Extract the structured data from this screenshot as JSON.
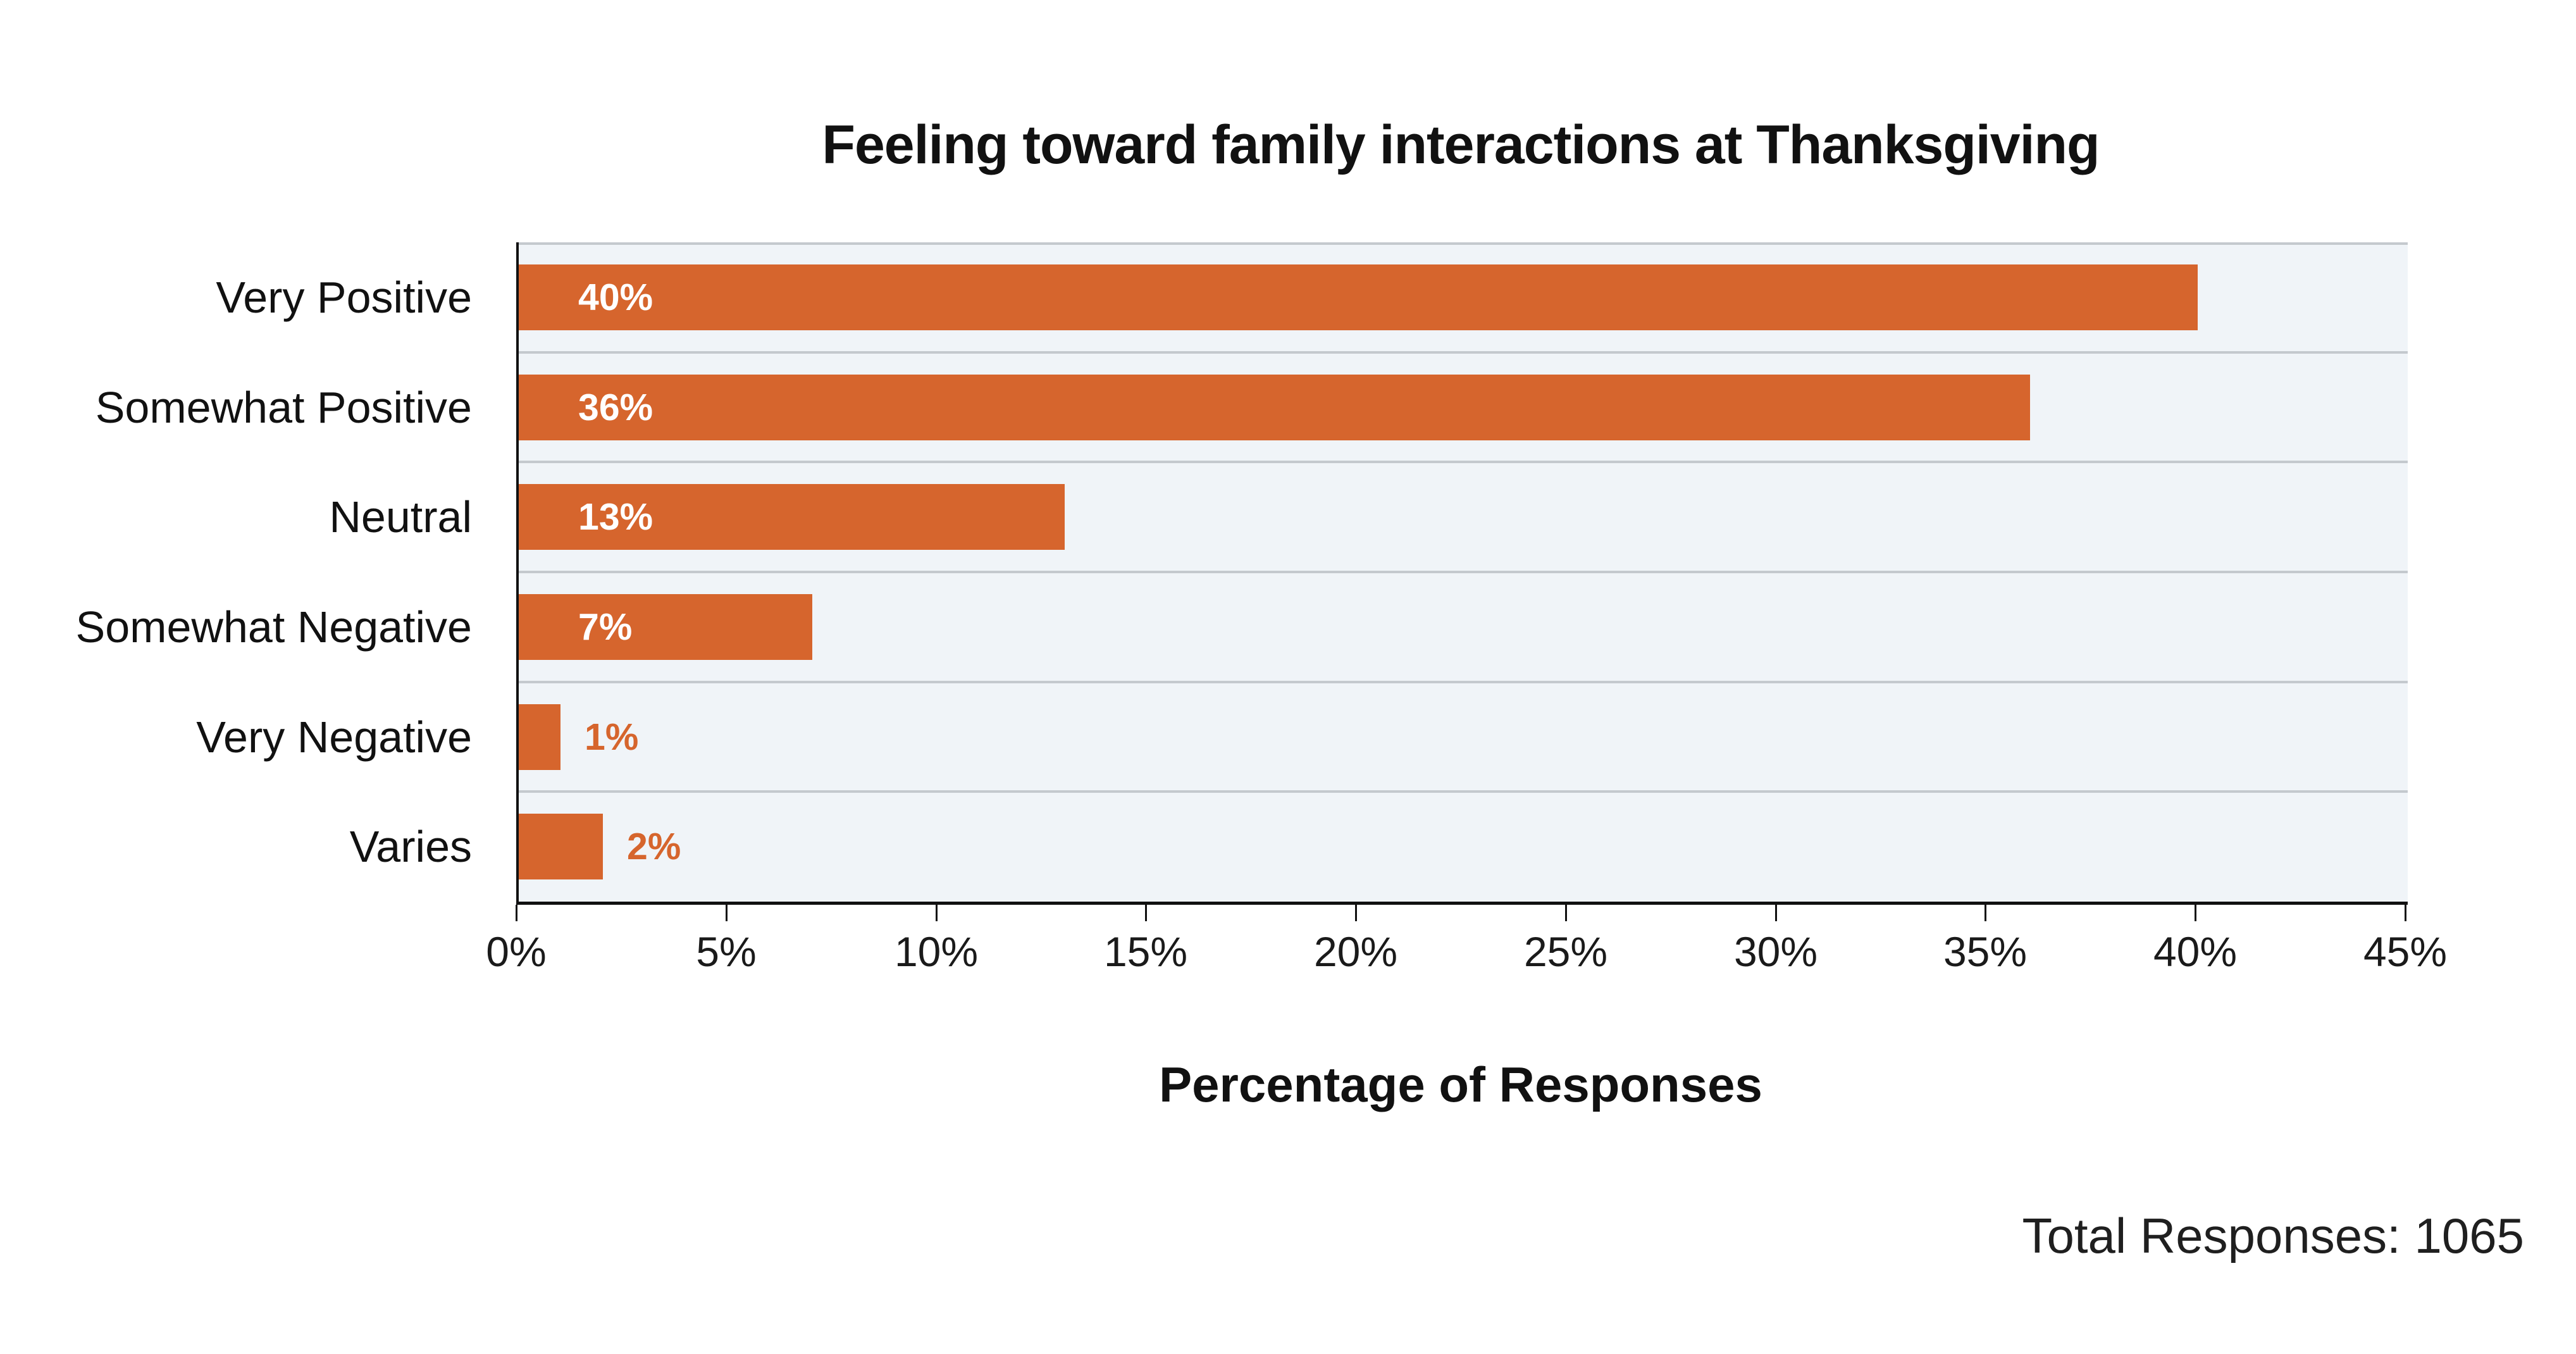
{
  "title": "Feeling toward family interactions at Thanksgiving",
  "x_axis_title": "Percentage of Responses",
  "footer_note": "Total Responses: 1065",
  "colors": {
    "bar": "#d6652d",
    "value_label_inside": "#ffffff",
    "value_label_outside": "#d6652d",
    "plot_background": "#f0f4f8",
    "gridline": "#c4c9ce",
    "axis": "#111111",
    "text": "#1a1a1a"
  },
  "chart_data": {
    "type": "bar",
    "orientation": "horizontal",
    "title": "Feeling toward family interactions at Thanksgiving",
    "xlabel": "Percentage of Responses",
    "ylabel": "",
    "categories": [
      "Very Positive",
      "Somewhat Positive",
      "Neutral",
      "Somewhat Negative",
      "Very Negative",
      "Varies"
    ],
    "values": [
      40,
      36,
      13,
      7,
      1,
      2
    ],
    "value_labels": [
      "40%",
      "36%",
      "13%",
      "7%",
      "1%",
      "2%"
    ],
    "xlim": [
      0,
      45
    ],
    "xtick_labels": [
      "0%",
      "5%",
      "10%",
      "15%",
      "20%",
      "25%",
      "30%",
      "35%",
      "40%",
      "45%"
    ],
    "grid": "horizontal band separator lines only, no vertical gridlines",
    "legend_position": "none",
    "annotations": [
      "Total Responses: 1065"
    ],
    "value_label_placement_rule": "inside bar in white when value >= 5, outside bar in orange when value < 5"
  }
}
